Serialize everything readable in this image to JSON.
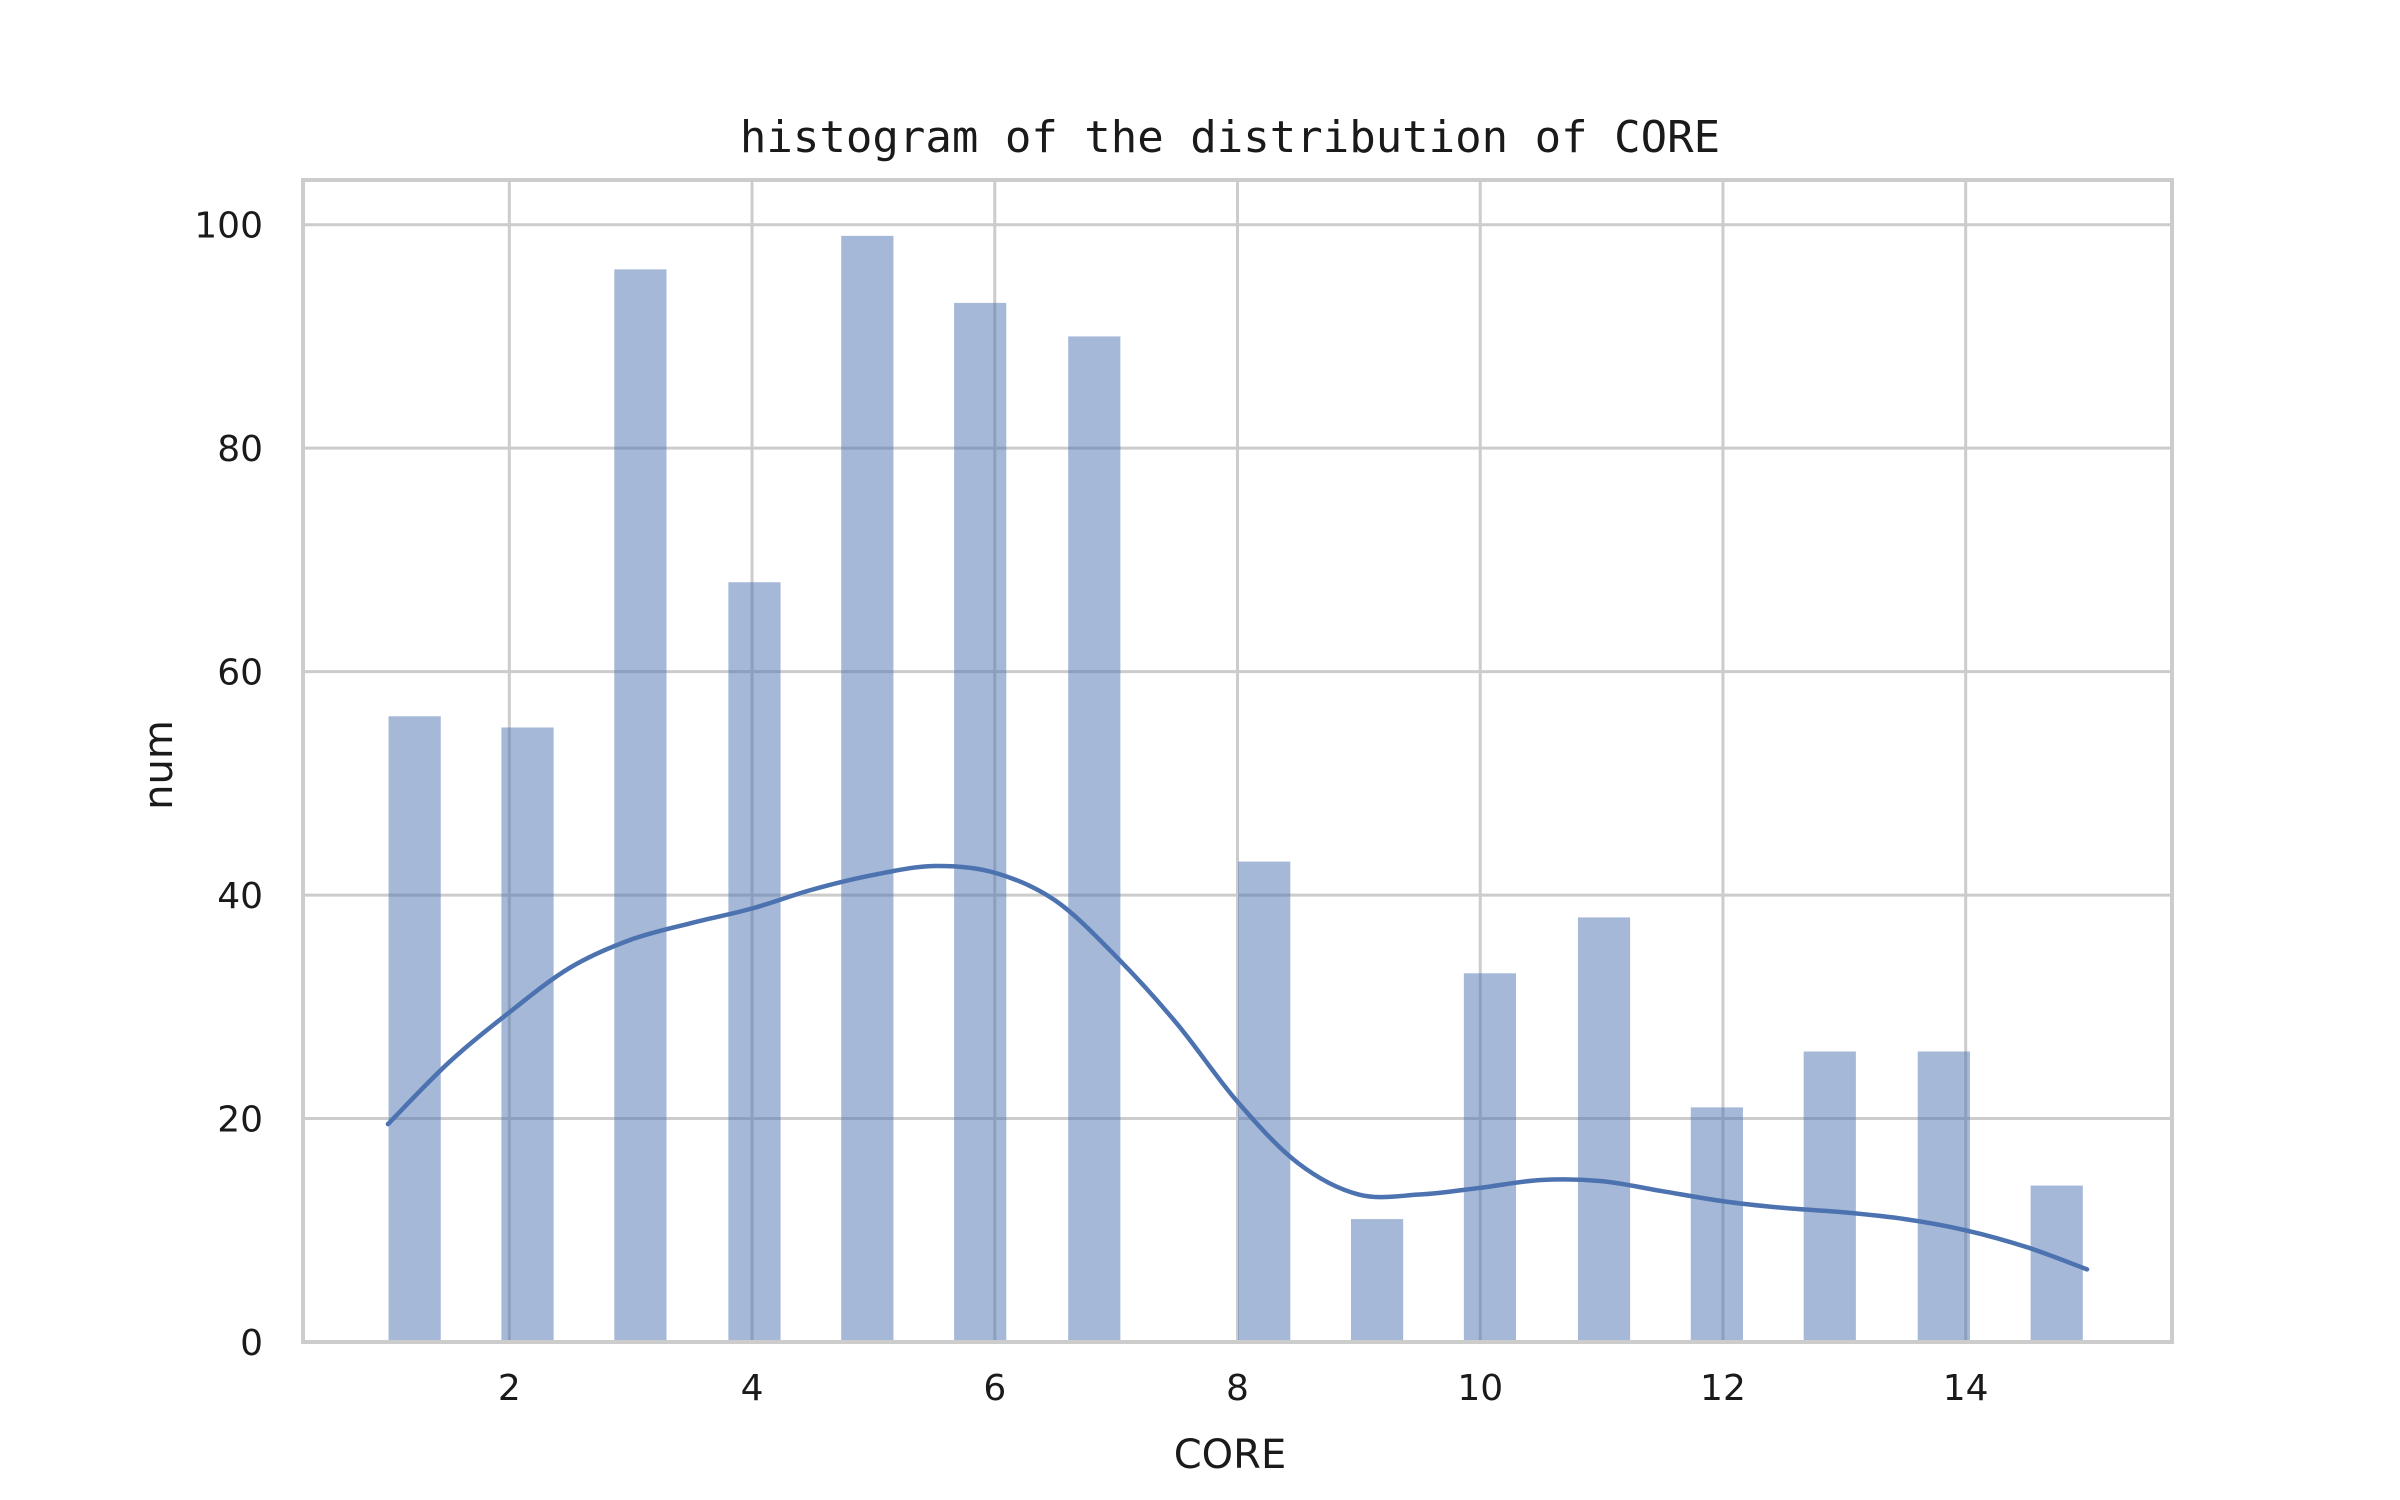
{
  "chart_data": {
    "type": "bar",
    "title": "histogram of the distribution of CORE",
    "xlabel": "CORE",
    "ylabel": "num",
    "xlim": [
      0.3,
      15.7
    ],
    "ylim": [
      0,
      104
    ],
    "xticks": [
      2,
      4,
      6,
      8,
      10,
      12,
      14
    ],
    "yticks": [
      0,
      20,
      40,
      60,
      80,
      100
    ],
    "grid": true,
    "bar_width": 0.43,
    "series": [
      {
        "type": "bar",
        "x": [
          1.22,
          2.15,
          3.08,
          4.02,
          4.95,
          5.88,
          6.82,
          8.22,
          9.15,
          10.08,
          11.02,
          11.95,
          12.88,
          13.82,
          14.75
        ],
        "values": [
          56,
          55,
          96,
          68,
          99,
          93,
          90,
          43,
          11,
          33,
          38,
          21,
          26,
          26,
          14
        ]
      },
      {
        "type": "line",
        "x": [
          1.0,
          1.5,
          2.0,
          2.5,
          3.0,
          3.5,
          4.0,
          4.5,
          5.0,
          5.5,
          6.0,
          6.5,
          7.0,
          7.5,
          8.0,
          8.5,
          9.0,
          9.5,
          10.0,
          10.5,
          11.0,
          11.5,
          12.0,
          12.5,
          13.0,
          13.5,
          14.0,
          14.5,
          15.0
        ],
        "values": [
          19.5,
          25,
          29.5,
          33.5,
          36,
          37.5,
          38.8,
          40.5,
          41.8,
          42.6,
          42.0,
          39.5,
          34.5,
          28.5,
          21.5,
          16,
          13.2,
          13.2,
          13.8,
          14.5,
          14.4,
          13.5,
          12.6,
          12.0,
          11.6,
          11.0,
          10.0,
          8.5,
          6.5
        ]
      }
    ]
  }
}
